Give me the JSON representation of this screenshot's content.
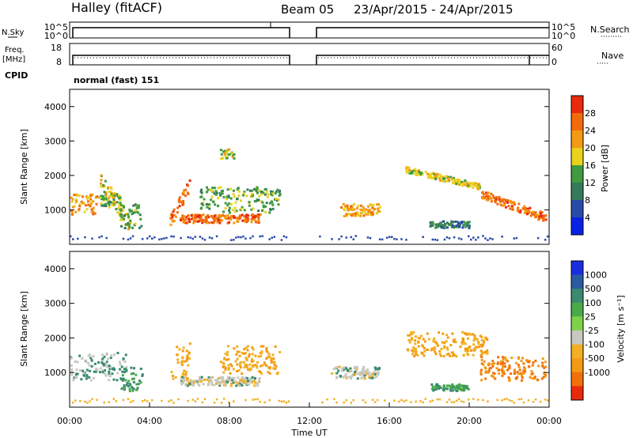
{
  "header": {
    "station": "Halley (fitACF)",
    "beam": "Beam 05",
    "dates": "23/Apr/2015 - 24/Apr/2015"
  },
  "side_labels": {
    "nsky": "N.Sky",
    "freq_line1": "Freq.",
    "freq_line2": "[MHz]",
    "cpid": "CPID",
    "nsearch": "N.Search",
    "nave": "Nave"
  },
  "strip_ticks": {
    "noise_left_top": "10^5",
    "noise_left_bottom": "10^0",
    "noise_right_top": "10^5",
    "noise_right_bottom": "10^0",
    "freq_left_top": "18",
    "freq_left_bottom": "8",
    "freq_right_top": "60",
    "freq_right_bottom": "0"
  },
  "cpid_text": "normal (fast) 151",
  "axes": {
    "xlabel": "Time UT",
    "ylabel": "Slant Range [km]",
    "xticks": [
      "00:00",
      "04:00",
      "08:00",
      "12:00",
      "16:00",
      "20:00",
      "00:00"
    ],
    "yticks": [
      "1000",
      "2000",
      "3000",
      "4000"
    ]
  },
  "power_scale": {
    "label": "Power [dB]",
    "ticks": [
      "4",
      "8",
      "12",
      "16",
      "20",
      "24",
      "28"
    ],
    "colors": [
      "#0a22e6",
      "#2a4aa8",
      "#357a5a",
      "#3f9a40",
      "#e8d21c",
      "#f39a12",
      "#f26a0c",
      "#e92a0c"
    ]
  },
  "velocity_scale": {
    "label": "Velocity [m s⁻¹]",
    "ticks": [
      "1000",
      "500",
      "100",
      "25",
      "-25",
      "-100",
      "-500",
      "-1000"
    ],
    "colors": [
      "#1a2ee0",
      "#2a5aa0",
      "#3a8a70",
      "#4aaa48",
      "#7ed24a",
      "#c8c8c0",
      "#f3b022",
      "#f39a12",
      "#f2700c",
      "#e92a0c"
    ]
  },
  "chart_data": {
    "type": "heatmap",
    "x_unit": "hours UT",
    "x_range": [
      0,
      24
    ],
    "y_range": [
      0,
      4500
    ],
    "data_gap": [
      11,
      12.4
    ],
    "power_blobs": [
      {
        "t": [
          0,
          1.4
        ],
        "r": [
          900,
          1500
        ],
        "level": 5
      },
      {
        "t": [
          1.4,
          2.6
        ],
        "r": [
          1100,
          1500
        ],
        "level": 3
      },
      {
        "t": [
          1.5,
          3.0
        ],
        "r": [
          600,
          1900
        ],
        "level": 4,
        "slope": -1
      },
      {
        "t": [
          2.5,
          3.6
        ],
        "r": [
          500,
          1200
        ],
        "level": 3
      },
      {
        "t": [
          5.0,
          6.0
        ],
        "r": [
          700,
          1800
        ],
        "level": 6,
        "slope": 1
      },
      {
        "t": [
          5.5,
          9.5
        ],
        "r": [
          650,
          900
        ],
        "level": 6
      },
      {
        "t": [
          6.5,
          10.5
        ],
        "r": [
          950,
          1700
        ],
        "level": 3
      },
      {
        "t": [
          7.5,
          8.2
        ],
        "r": [
          2500,
          2800
        ],
        "level": 4
      },
      {
        "t": [
          13.5,
          15.5
        ],
        "r": [
          850,
          1200
        ],
        "level": 5
      },
      {
        "t": [
          16.8,
          20.5
        ],
        "r": [
          1700,
          2200
        ],
        "level": 4,
        "slope": -1
      },
      {
        "t": [
          20.5,
          23.8
        ],
        "r": [
          800,
          1500
        ],
        "level": 6,
        "slope": -1
      },
      {
        "t": [
          18,
          20
        ],
        "r": [
          500,
          700
        ],
        "level": 2
      }
    ],
    "velocity_blobs": [
      {
        "t": [
          0,
          2.8
        ],
        "r": [
          800,
          1600
        ],
        "vel": 25
      },
      {
        "t": [
          2.5,
          3.6
        ],
        "r": [
          500,
          1200
        ],
        "vel": 100
      },
      {
        "t": [
          5.0,
          6.0
        ],
        "r": [
          800,
          1900
        ],
        "vel": -100
      },
      {
        "t": [
          5.5,
          9.5
        ],
        "r": [
          650,
          900
        ],
        "vel": 0
      },
      {
        "t": [
          7.5,
          10.5
        ],
        "r": [
          1000,
          1800
        ],
        "vel": -100
      },
      {
        "t": [
          13.0,
          15.5
        ],
        "r": [
          850,
          1200
        ],
        "vel": 0
      },
      {
        "t": [
          16.8,
          21.0
        ],
        "r": [
          1500,
          2200
        ],
        "vel": -100
      },
      {
        "t": [
          20.5,
          23.8
        ],
        "r": [
          800,
          1500
        ],
        "vel": -500
      },
      {
        "t": [
          18,
          20
        ],
        "r": [
          500,
          700
        ],
        "vel": 100
      }
    ]
  }
}
